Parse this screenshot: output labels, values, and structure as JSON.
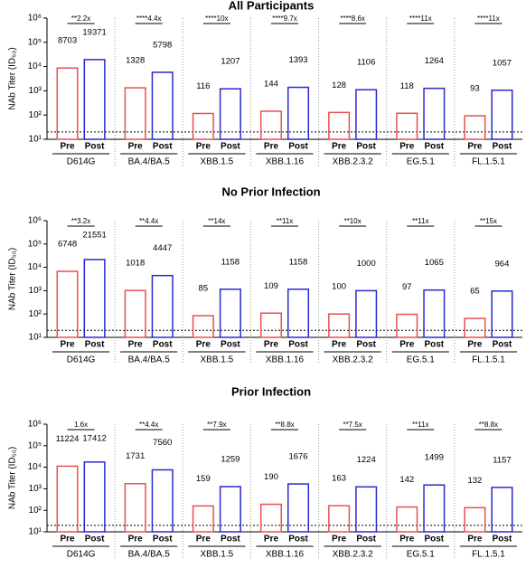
{
  "chart_data": [
    {
      "type": "bar",
      "title": "All Participants",
      "y_label": "NAb Titer (ID₅₀)",
      "log_scale": true,
      "categories": [
        "D614G",
        "BA.4/BA.5",
        "XBB.1.5",
        "XBB.1.16",
        "XBB.2.3.2",
        "EG.5.1",
        "FL.1.5.1"
      ],
      "group_labels": [
        "Pre",
        "Post"
      ],
      "series": [
        {
          "name": "Pre",
          "color": "#e8504f",
          "values": [
            8703,
            1328,
            116,
            144,
            128,
            118,
            93
          ]
        },
        {
          "name": "Post",
          "color": "#2a2ad0",
          "values": [
            19371,
            5798,
            1207,
            1393,
            1106,
            1264,
            1057
          ]
        }
      ],
      "annotations": [
        "**2.2x",
        "****4.4x",
        "****10x",
        "****9.7x",
        "****8.6x",
        "****11x",
        "****11x"
      ],
      "threshold": 20,
      "ylim": [
        10,
        1000000
      ],
      "yticks": [
        {
          "value": 10,
          "label": "10¹"
        },
        {
          "value": 100,
          "label": "10²"
        },
        {
          "value": 1000,
          "label": "10³"
        },
        {
          "value": 10000,
          "label": "10⁴"
        },
        {
          "value": 100000,
          "label": "10⁵"
        },
        {
          "value": 1000000,
          "label": "10⁶"
        }
      ]
    },
    {
      "type": "bar",
      "title": "No Prior Infection",
      "y_label": "NAb Titer (ID₅₀)",
      "log_scale": true,
      "categories": [
        "D614G",
        "BA.4/BA.5",
        "XBB.1.5",
        "XBB.1.16",
        "XBB.2.3.2",
        "EG.5.1",
        "FL.1.5.1"
      ],
      "group_labels": [
        "Pre",
        "Post"
      ],
      "series": [
        {
          "name": "Pre",
          "color": "#e8504f",
          "values": [
            6748,
            1018,
            85,
            109,
            100,
            97,
            65
          ]
        },
        {
          "name": "Post",
          "color": "#2a2ad0",
          "values": [
            21551,
            4447,
            1158,
            1158,
            1000,
            1065,
            964
          ]
        }
      ],
      "annotations": [
        "**3.2x",
        "**4.4x",
        "**14x",
        "**11x",
        "**10x",
        "**11x",
        "**15x"
      ],
      "threshold": 20,
      "ylim": [
        10,
        1000000
      ],
      "yticks": [
        {
          "value": 10,
          "label": "10¹"
        },
        {
          "value": 100,
          "label": "10²"
        },
        {
          "value": 1000,
          "label": "10³"
        },
        {
          "value": 10000,
          "label": "10⁴"
        },
        {
          "value": 100000,
          "label": "10⁵"
        },
        {
          "value": 1000000,
          "label": "10⁶"
        }
      ]
    },
    {
      "type": "bar",
      "title": "Prior Infection",
      "y_label": "NAb Titer (ID₅₀)",
      "log_scale": true,
      "categories": [
        "D614G",
        "BA.4/BA.5",
        "XBB.1.5",
        "XBB.1.16",
        "XBB.2.3.2",
        "EG.5.1",
        "FL.1.5.1"
      ],
      "group_labels": [
        "Pre",
        "Post"
      ],
      "series": [
        {
          "name": "Pre",
          "color": "#e8504f",
          "values": [
            11224,
            1731,
            159,
            190,
            163,
            142,
            132
          ]
        },
        {
          "name": "Post",
          "color": "#2a2ad0",
          "values": [
            17412,
            7560,
            1259,
            1676,
            1224,
            1499,
            1157
          ]
        }
      ],
      "annotations": [
        "1.6x",
        "**4.4x",
        "**7.9x",
        "**8.8x",
        "**7.5x",
        "**11x",
        "**8.8x"
      ],
      "threshold": 20,
      "ylim": [
        10,
        1000000
      ],
      "yticks": [
        {
          "value": 10,
          "label": "10¹"
        },
        {
          "value": 100,
          "label": "10²"
        },
        {
          "value": 1000,
          "label": "10³"
        },
        {
          "value": 10000,
          "label": "10⁴"
        },
        {
          "value": 100000,
          "label": "10⁵"
        },
        {
          "value": 1000000,
          "label": "10⁶"
        }
      ]
    }
  ]
}
